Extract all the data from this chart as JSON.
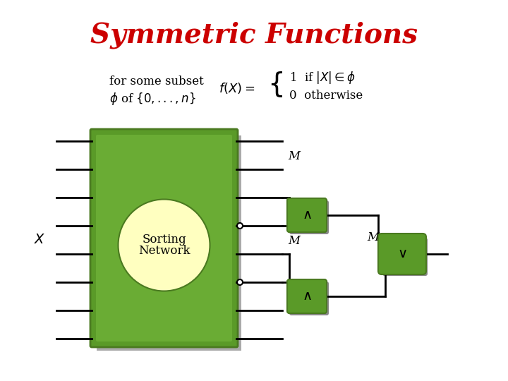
{
  "title": "Symmetric Functions",
  "title_color": "#cc0000",
  "title_fontsize": 28,
  "bg_color": "#ffffff",
  "text_formula_left1": "for some subset",
  "text_formula_left2": "$\\phi$ of $\\{0,...,n\\}$",
  "text_formula_fx": "$f(X) = $",
  "text_formula_case1": "1  if $|X| \\in \\phi$",
  "text_formula_case2": "0  otherwise",
  "label_X": "$X$",
  "label_sorting": "Sorting",
  "label_network": "Network",
  "label_M1": "M",
  "label_M2": "M",
  "label_M3": "M",
  "gate_and_symbol": "$\\wedge$",
  "gate_or_symbol": "$\\vee$",
  "green_dark": "#4a7a20",
  "green_mid": "#5a9a28",
  "green_light": "#7abf40",
  "green_box": "#5a9a28",
  "cream": "#ffffc0",
  "shadow_color": "#aaaaaa"
}
